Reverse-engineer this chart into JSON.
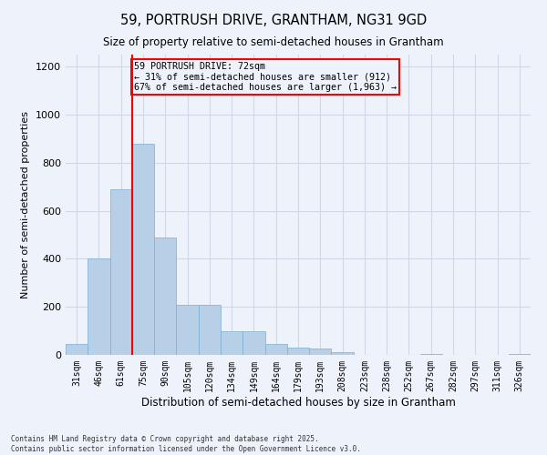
{
  "title1": "59, PORTRUSH DRIVE, GRANTHAM, NG31 9GD",
  "title2": "Size of property relative to semi-detached houses in Grantham",
  "xlabel": "Distribution of semi-detached houses by size in Grantham",
  "ylabel": "Number of semi-detached properties",
  "categories": [
    "31sqm",
    "46sqm",
    "61sqm",
    "75sqm",
    "90sqm",
    "105sqm",
    "120sqm",
    "134sqm",
    "149sqm",
    "164sqm",
    "179sqm",
    "193sqm",
    "208sqm",
    "223sqm",
    "238sqm",
    "252sqm",
    "267sqm",
    "282sqm",
    "297sqm",
    "311sqm",
    "326sqm"
  ],
  "values": [
    45,
    400,
    690,
    880,
    490,
    210,
    210,
    100,
    100,
    45,
    30,
    25,
    10,
    0,
    0,
    0,
    5,
    0,
    0,
    0,
    5
  ],
  "bar_color": "#b8cfe8",
  "bar_edge_color": "#7aadd4",
  "property_bin_index": 2,
  "vline_color": "red",
  "annotation_box_color": "red",
  "annotation_text": "59 PORTRUSH DRIVE: 72sqm\n← 31% of semi-detached houses are smaller (912)\n67% of semi-detached houses are larger (1,963) →",
  "ylim": [
    0,
    1250
  ],
  "yticks": [
    0,
    200,
    400,
    600,
    800,
    1000,
    1200
  ],
  "footer": "Contains HM Land Registry data © Crown copyright and database right 2025.\nContains public sector information licensed under the Open Government Licence v3.0.",
  "background_color": "#eef2fa",
  "grid_color": "#d0d8e8"
}
